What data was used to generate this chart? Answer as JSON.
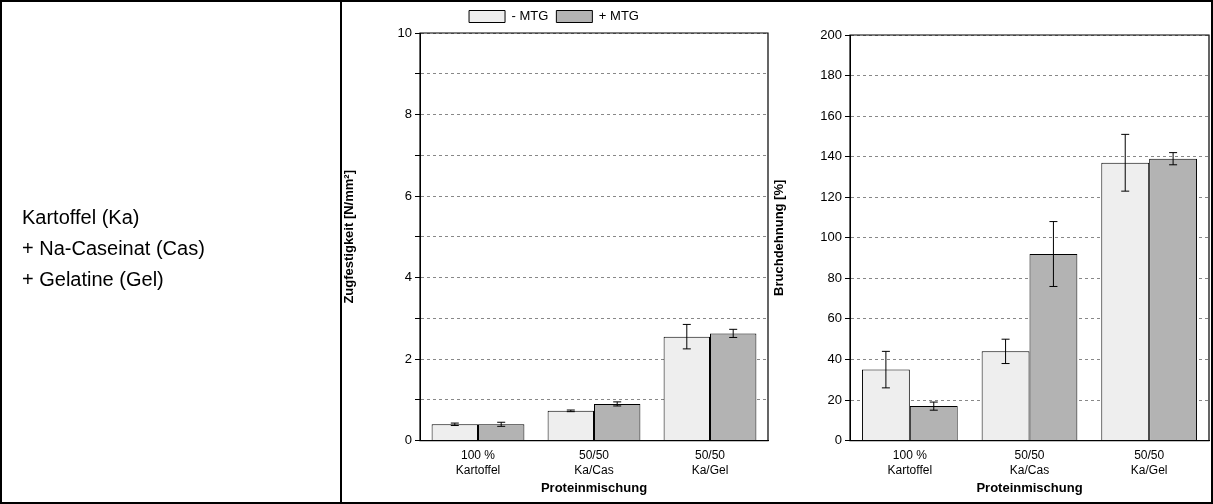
{
  "chart_data": [
    {
      "type": "other",
      "annotations": [
        "Kartoffel (Ka)",
        "+ Na-Caseinat (Cas)",
        "+ Gelatine (Gel)"
      ]
    },
    {
      "type": "bar",
      "xlabel": "Proteinmischung",
      "ylabel": "Zugfestigkeit [N/mm²]",
      "categories": [
        "100 %\nKartoffel",
        "50/50\nKa/Cas",
        "50/50\nKa/Gel"
      ],
      "series": [
        {
          "name": "- MTG",
          "color": "#eeeeee",
          "values": [
            0.4,
            0.73,
            2.55
          ],
          "errors": [
            0.03,
            0.02,
            0.3
          ]
        },
        {
          "name": "+ MTG",
          "color": "#b3b3b3",
          "values": [
            0.4,
            0.9,
            2.63
          ],
          "errors": [
            0.05,
            0.05,
            0.1
          ]
        }
      ],
      "ylim": [
        0,
        10
      ],
      "yticks": [
        0,
        {
          "value": 1,
          "label": null
        },
        2,
        {
          "value": 3,
          "label": null
        },
        4,
        {
          "value": 5,
          "label": null
        },
        6,
        {
          "value": 7,
          "label": null
        },
        8,
        {
          "value": 9,
          "label": null
        },
        10
      ],
      "grid": "y",
      "legend": "top"
    },
    {
      "type": "bar",
      "xlabel": "Proteinmischung",
      "ylabel": "Bruchdehnung [%]",
      "categories": [
        "100 %\nKartoffel",
        "50/50\nKa/Cas",
        "50/50\nKa/Gel"
      ],
      "series": [
        {
          "color": "#eeeeee",
          "values": [
            35,
            44,
            137
          ],
          "errors": [
            9,
            6,
            14
          ]
        },
        {
          "color": "#b3b3b3",
          "values": [
            17,
            92,
            139
          ],
          "errors": [
            2,
            16,
            3
          ]
        }
      ],
      "ylim": [
        0,
        200
      ],
      "yticks": [
        0,
        20,
        40,
        60,
        80,
        100,
        120,
        140,
        160,
        180,
        200
      ],
      "grid": "y"
    }
  ]
}
